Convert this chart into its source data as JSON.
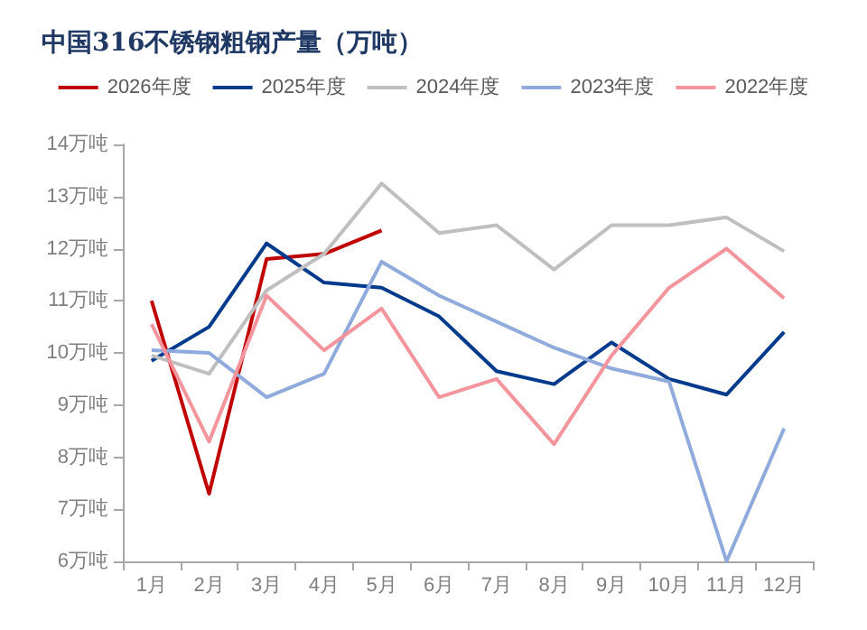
{
  "chart_data": {
    "type": "line",
    "title": "中国316不锈钢粗钢产量（万吨）",
    "categories": [
      "1月",
      "2月",
      "3月",
      "4月",
      "5月",
      "6月",
      "7月",
      "8月",
      "9月",
      "10月",
      "11月",
      "12月"
    ],
    "series": [
      {
        "name": "2026年度",
        "color": "#c00000",
        "values": [
          11.0,
          7.3,
          11.8,
          11.9,
          12.35,
          null,
          null,
          null,
          null,
          null,
          null,
          null
        ]
      },
      {
        "name": "2025年度",
        "color": "#003a8c",
        "values": [
          9.85,
          10.5,
          12.1,
          11.35,
          11.25,
          10.7,
          9.65,
          9.4,
          10.2,
          9.5,
          9.2,
          10.4
        ]
      },
      {
        "name": "2024年度",
        "color": "#bfbfbf",
        "values": [
          9.95,
          9.6,
          11.2,
          11.9,
          13.25,
          12.3,
          12.45,
          11.6,
          12.45,
          12.45,
          12.6,
          11.95
        ]
      },
      {
        "name": "2023年度",
        "color": "#8faadc",
        "values": [
          10.05,
          10.0,
          9.15,
          9.6,
          11.75,
          11.1,
          10.6,
          10.1,
          9.7,
          9.45,
          6.0,
          8.55
        ]
      },
      {
        "name": "2022年度",
        "color": "#f4949c",
        "values": [
          10.55,
          8.3,
          11.1,
          10.05,
          10.85,
          9.15,
          9.5,
          8.25,
          9.95,
          11.25,
          12.0,
          11.05
        ]
      }
    ],
    "ylim": [
      6,
      14
    ],
    "yticks": [
      {
        "value": 6,
        "label": "6万吨"
      },
      {
        "value": 7,
        "label": "7万吨"
      },
      {
        "value": 8,
        "label": "8万吨"
      },
      {
        "value": 9,
        "label": "9万吨"
      },
      {
        "value": 10,
        "label": "10万吨"
      },
      {
        "value": 11,
        "label": "11万吨"
      },
      {
        "value": 12,
        "label": "12万吨"
      },
      {
        "value": 13,
        "label": "13万吨"
      },
      {
        "value": 14,
        "label": "14万吨"
      }
    ],
    "grid": false,
    "legend": "top",
    "marker": "none",
    "line_style": "solid"
  }
}
